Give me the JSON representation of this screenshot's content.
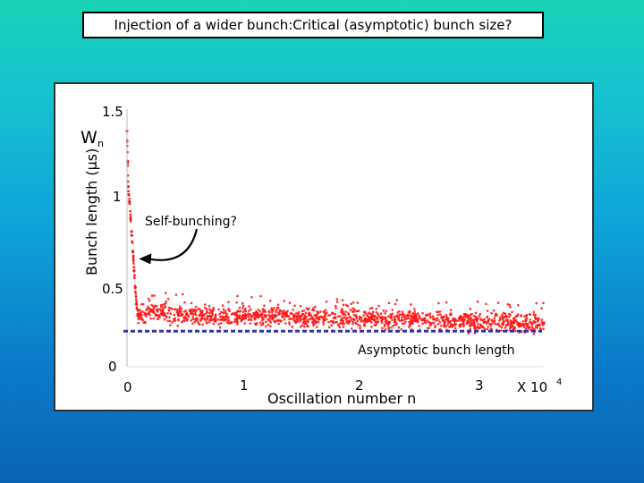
{
  "title": "Injection of a wider bunch:Critical (asymptotic) bunch size?",
  "chart_data": {
    "type": "scatter",
    "title": "",
    "xlabel": "Oscillation number   n",
    "ylabel": "Bunch length (μs)",
    "x_scale_label": "X 10",
    "x_scale_exponent": "4",
    "xlim": [
      0,
      3.5
    ],
    "ylim": [
      0,
      1.5
    ],
    "x_ticks": [
      {
        "value": 0,
        "label": "0"
      },
      {
        "value": 1,
        "label": "1"
      },
      {
        "value": 2,
        "label": "2"
      },
      {
        "value": 3,
        "label": "3"
      }
    ],
    "y_ticks": [
      {
        "value": 0,
        "label": "0"
      },
      {
        "value": 0.5,
        "label": "0.5"
      },
      {
        "value": 1,
        "label": "1"
      },
      {
        "value": 1.5,
        "label": "1.5"
      }
    ],
    "series": [
      {
        "color": "#ff1a1a",
        "points": [
          [
            0.0,
            1.38
          ],
          [
            0.005,
            1.2
          ],
          [
            0.01,
            1.05
          ],
          [
            0.02,
            0.96
          ],
          [
            0.03,
            0.86
          ],
          [
            0.04,
            0.76
          ],
          [
            0.05,
            0.66
          ],
          [
            0.06,
            0.55
          ],
          [
            0.07,
            0.45
          ],
          [
            0.08,
            0.35
          ],
          [
            0.09,
            0.29
          ],
          [
            0.1,
            0.28
          ],
          [
            0.15,
            0.29
          ],
          [
            0.2,
            0.31
          ],
          [
            0.3,
            0.3
          ],
          [
            0.5,
            0.29
          ],
          [
            0.7,
            0.28
          ],
          [
            1.0,
            0.28
          ],
          [
            1.25,
            0.28
          ],
          [
            1.5,
            0.275
          ],
          [
            1.75,
            0.27
          ],
          [
            2.0,
            0.265
          ],
          [
            2.25,
            0.26
          ],
          [
            2.5,
            0.255
          ],
          [
            2.75,
            0.25
          ],
          [
            3.0,
            0.245
          ],
          [
            3.25,
            0.24
          ],
          [
            3.5,
            0.24
          ]
        ]
      }
    ],
    "annotations": [
      {
        "id": "wn",
        "text": "W",
        "sub": "n"
      },
      {
        "id": "self-bunching",
        "text": "Self-bunching?",
        "arrow_to": [
          0.01,
          0.61
        ]
      },
      {
        "id": "asymptotic",
        "text": "Asymptotic bunch length",
        "y": 0.19,
        "line_color": "#3333aa",
        "line_style": "dashed"
      }
    ],
    "grid": false,
    "legend": "none"
  }
}
